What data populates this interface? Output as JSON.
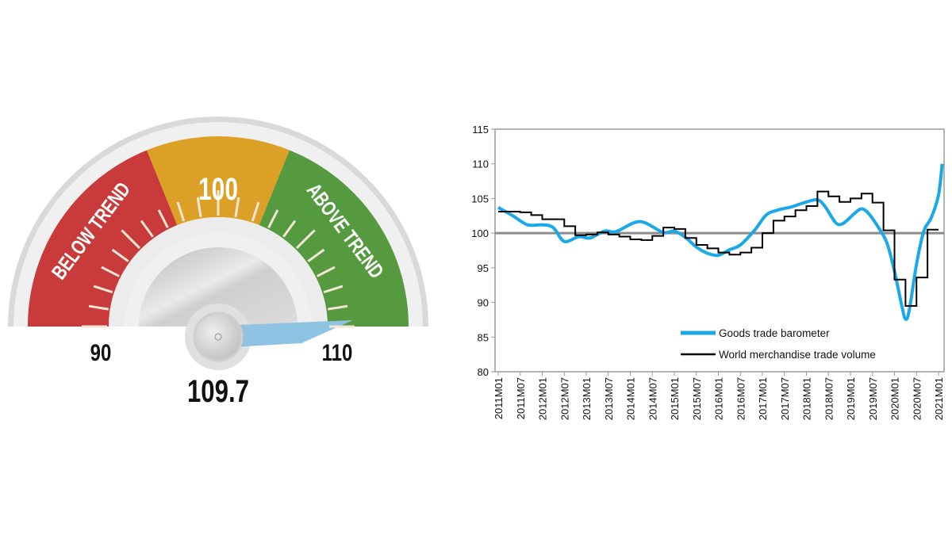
{
  "gauge": {
    "value": 109.7,
    "value_label": "109.7",
    "min_label": "90",
    "mid_label": "100",
    "max_label": "110",
    "min": 90,
    "max": 110,
    "below_label": "BELOW TREND",
    "above_label": "ABOVE TREND",
    "colors": {
      "below": "#c93a3a",
      "mid": "#dda026",
      "above": "#559a3f",
      "needle": "#8fc3e4"
    }
  },
  "chart_data": {
    "type": "line",
    "title": "",
    "xlabel": "",
    "ylabel": "",
    "ylim": [
      80,
      115
    ],
    "yticks": [
      80,
      85,
      90,
      95,
      100,
      105,
      110,
      115
    ],
    "xticks": [
      "2011M01",
      "2011M07",
      "2012M01",
      "2012M07",
      "2013M01",
      "2013M07",
      "2014M01",
      "2014M07",
      "2015M01",
      "2015M07",
      "2016M01",
      "2016M07",
      "2017M01",
      "2017M07",
      "2018M01",
      "2018M07",
      "2019M01",
      "2019M07",
      "2020M01",
      "2020M07",
      "2021M01"
    ],
    "reference_line": 100,
    "grid": false,
    "legend_position": "bottom-right",
    "series": [
      {
        "name": "Goods trade barometer",
        "color": "#1aa9e6",
        "style": "smooth",
        "points": [
          [
            "2011M01",
            103.7
          ],
          [
            "2011M05",
            102.5
          ],
          [
            "2011M09",
            101.2
          ],
          [
            "2012M01",
            101.2
          ],
          [
            "2012M04",
            100.8
          ],
          [
            "2012M07",
            98.8
          ],
          [
            "2012M11",
            99.5
          ],
          [
            "2013M02",
            99.3
          ],
          [
            "2013M06",
            100.3
          ],
          [
            "2013M09",
            100.2
          ],
          [
            "2014M02",
            101.5
          ],
          [
            "2014M05",
            101.5
          ],
          [
            "2014M10",
            100.1
          ],
          [
            "2015M01",
            100.3
          ],
          [
            "2015M04",
            99.4
          ],
          [
            "2015M07",
            98.0
          ],
          [
            "2015M10",
            97.1
          ],
          [
            "2016M01",
            96.8
          ],
          [
            "2016M04",
            97.6
          ],
          [
            "2016M07",
            98.3
          ],
          [
            "2016M11",
            100.5
          ],
          [
            "2017M02",
            102.6
          ],
          [
            "2017M05",
            103.3
          ],
          [
            "2017M09",
            103.8
          ],
          [
            "2018M01",
            104.5
          ],
          [
            "2018M04",
            104.8
          ],
          [
            "2018M06",
            103.9
          ],
          [
            "2018M09",
            101.5
          ],
          [
            "2018M11",
            101.4
          ],
          [
            "2019M02",
            102.8
          ],
          [
            "2019M04",
            103.5
          ],
          [
            "2019M06",
            102.8
          ],
          [
            "2019M09",
            100.5
          ],
          [
            "2019M11",
            98.5
          ],
          [
            "2020M01",
            94.5
          ],
          [
            "2020M03",
            89.5
          ],
          [
            "2020M04",
            87.6
          ],
          [
            "2020M05",
            88.8
          ],
          [
            "2020M07",
            95.5
          ],
          [
            "2020M09",
            100.3
          ],
          [
            "2020M11",
            102.2
          ],
          [
            "2021M01",
            105.5
          ],
          [
            "2021M02",
            110.0
          ]
        ]
      },
      {
        "name": "World merchandise trade volume",
        "color": "#000000",
        "style": "quarterly-step",
        "quarters": [
          "2011Q1",
          "2011Q2",
          "2011Q3",
          "2011Q4",
          "2012Q1",
          "2012Q2",
          "2012Q3",
          "2012Q4",
          "2013Q1",
          "2013Q2",
          "2013Q3",
          "2013Q4",
          "2014Q1",
          "2014Q2",
          "2014Q3",
          "2014Q4",
          "2015Q1",
          "2015Q2",
          "2015Q3",
          "2015Q4",
          "2016Q1",
          "2016Q2",
          "2016Q3",
          "2016Q4",
          "2017Q1",
          "2017Q2",
          "2017Q3",
          "2017Q4",
          "2018Q1",
          "2018Q2",
          "2018Q3",
          "2018Q4",
          "2019Q1",
          "2019Q2",
          "2019Q3",
          "2019Q4",
          "2020Q1",
          "2020Q2",
          "2020Q3",
          "2020Q4"
        ],
        "values": [
          103.1,
          103.1,
          103.0,
          102.6,
          102.0,
          102.0,
          101.0,
          99.7,
          99.8,
          100.1,
          99.8,
          99.5,
          99.1,
          99.0,
          99.6,
          100.8,
          100.6,
          99.3,
          98.3,
          97.8,
          97.2,
          96.9,
          97.2,
          97.9,
          100.0,
          101.8,
          102.4,
          103.3,
          103.9,
          106.0,
          105.3,
          104.5,
          105.0,
          105.7,
          104.4,
          100.4,
          93.3,
          89.5,
          93.6,
          100.5
        ]
      }
    ]
  }
}
